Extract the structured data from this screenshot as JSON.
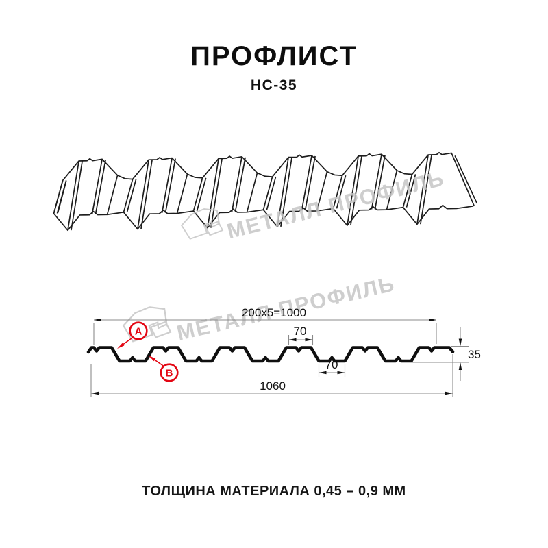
{
  "header": {
    "title": "ПРОФЛИСТ",
    "subtitle": "НС-35"
  },
  "watermark": {
    "brand": "МЕТАЛЛ ПРОФИЛЬ",
    "color": "#c6c6c6"
  },
  "diagram": {
    "profile_name": "НС-35",
    "dimensions": {
      "useful_width": "200x5=1000",
      "crest_width": "70",
      "valley_width": "70",
      "profile_height": "35",
      "overall_width": "1060"
    },
    "markers": {
      "a_label": "A",
      "b_label": "B",
      "color": "#e30613"
    }
  },
  "footer": {
    "material_thickness": "ТОЛЩИНА МАТЕРИАЛА 0,45 – 0,9 ММ"
  }
}
